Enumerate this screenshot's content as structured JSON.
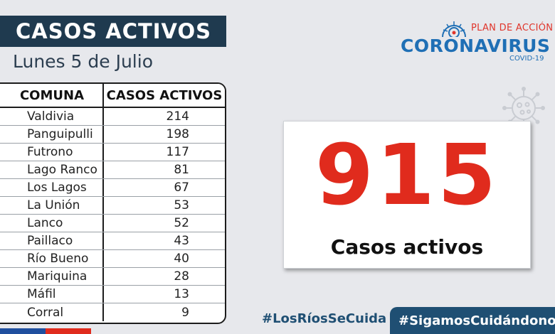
{
  "header": {
    "title": "CASOS ACTIVOS",
    "date": "Lunes 5 de Julio"
  },
  "table": {
    "columns": [
      "COMUNA",
      "CASOS ACTIVOS"
    ],
    "rows": [
      {
        "comuna": "Valdivia",
        "casos": "214"
      },
      {
        "comuna": "Panguipulli",
        "casos": "198"
      },
      {
        "comuna": "Futrono",
        "casos": "117"
      },
      {
        "comuna": "Lago Ranco",
        "casos": "81"
      },
      {
        "comuna": "Los Lagos",
        "casos": "67"
      },
      {
        "comuna": "La Unión",
        "casos": "53"
      },
      {
        "comuna": "Lanco",
        "casos": "52"
      },
      {
        "comuna": "Paillaco",
        "casos": "43"
      },
      {
        "comuna": "Río Bueno",
        "casos": "40"
      },
      {
        "comuna": "Mariquina",
        "casos": "28"
      },
      {
        "comuna": "Máfil",
        "casos": "13"
      },
      {
        "comuna": "Corral",
        "casos": "9"
      }
    ]
  },
  "logo": {
    "plan": "PLAN DE ACCIÓN",
    "main": "CORONAVIRUS",
    "sub": "COVID-19",
    "icon": "virus-icon"
  },
  "summary": {
    "total": "915",
    "label": "Casos activos"
  },
  "footer": {
    "hashtag_1": "#LosRíosSeCuida",
    "hashtag_2": "#SigamosCuidándonos"
  },
  "colors": {
    "title_band": "#1f3a4f",
    "number": "#e02b1d",
    "brand_blue": "#1f6fb5",
    "footer_band": "#1f4f73"
  }
}
